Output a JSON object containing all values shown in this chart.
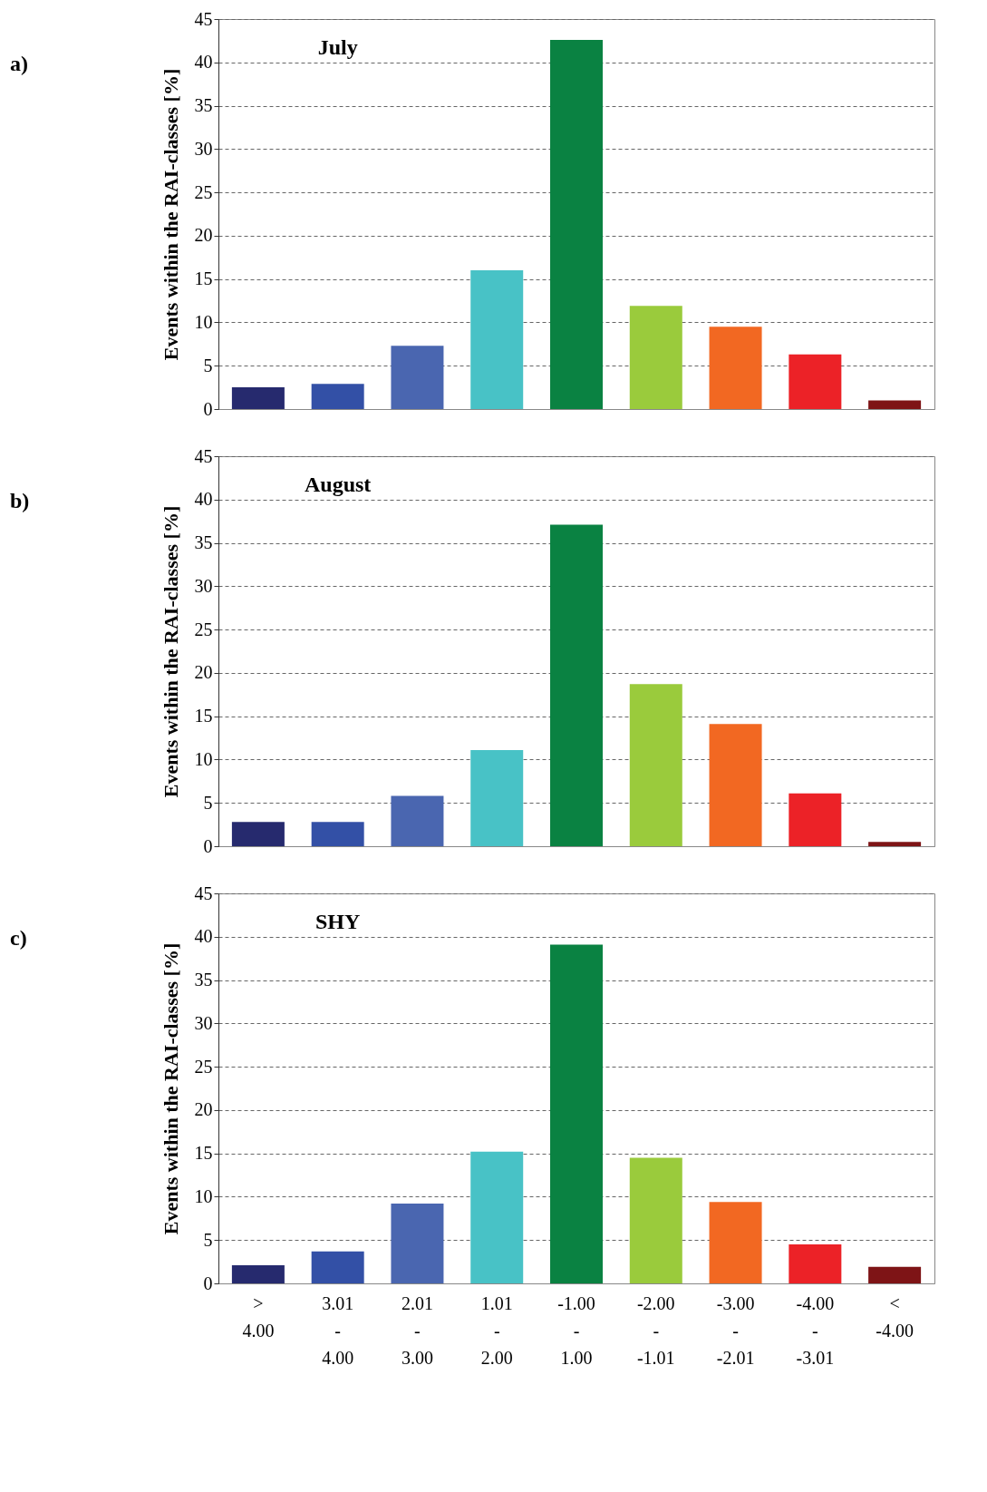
{
  "chart_data": [
    {
      "type": "bar",
      "title": "July",
      "ylabel": "Events within the RAI-classes [%]",
      "annotations": [
        "a)"
      ],
      "categories": [
        null,
        null,
        null,
        null,
        null,
        null,
        null,
        null,
        null
      ],
      "values": [
        2.5,
        2.9,
        7.3,
        16.0,
        42.6,
        11.9,
        9.5,
        6.3,
        1.0
      ],
      "colors": [
        "#262a6e",
        "#3350a6",
        "#4a66b0",
        "#48c2c6",
        "#0a8242",
        "#9acb3c",
        "#f26822",
        "#ec2227",
        "#7e1416"
      ],
      "ylim": [
        0,
        45
      ],
      "yticks": [
        0,
        5,
        10,
        15,
        20,
        25,
        30,
        35,
        40,
        45
      ],
      "grid": "y",
      "tick_labels": "y"
    },
    {
      "type": "bar",
      "title": "August",
      "ylabel": "Events within the RAI-classes [%]",
      "annotations": [
        "b)"
      ],
      "categories": [
        null,
        null,
        null,
        null,
        null,
        null,
        null,
        null,
        null
      ],
      "values": [
        2.8,
        2.8,
        5.8,
        11.1,
        37.1,
        18.7,
        14.1,
        6.1,
        0.5
      ],
      "colors": [
        "#262a6e",
        "#3350a6",
        "#4a66b0",
        "#48c2c6",
        "#0a8242",
        "#9acb3c",
        "#f26822",
        "#ec2227",
        "#7e1416"
      ],
      "ylim": [
        0,
        45
      ],
      "yticks": [
        0,
        5,
        10,
        15,
        20,
        25,
        30,
        35,
        40,
        45
      ],
      "grid": "y",
      "tick_labels": "y"
    },
    {
      "type": "bar",
      "title": "SHY",
      "ylabel": "Events within the RAI-classes [%]",
      "annotations": [
        "c)"
      ],
      "categories": [
        "> 4.00",
        "3.01 - 4.00",
        "2.01 - 3.00",
        "1.01 - 2.00",
        "-1.00 - 1.00",
        "-2.00 - -1.01",
        "-3.00 - -2.01",
        "-4.00 - -3.01",
        "< -4.00"
      ],
      "values": [
        2.1,
        3.7,
        9.2,
        15.2,
        39.1,
        14.5,
        9.4,
        4.5,
        1.9
      ],
      "colors": [
        "#262a6e",
        "#3350a6",
        "#4a66b0",
        "#48c2c6",
        "#0a8242",
        "#9acb3c",
        "#f26822",
        "#ec2227",
        "#7e1416"
      ],
      "ylim": [
        0,
        45
      ],
      "yticks": [
        0,
        5,
        10,
        15,
        20,
        25,
        30,
        35,
        40,
        45
      ],
      "grid": "y"
    }
  ]
}
